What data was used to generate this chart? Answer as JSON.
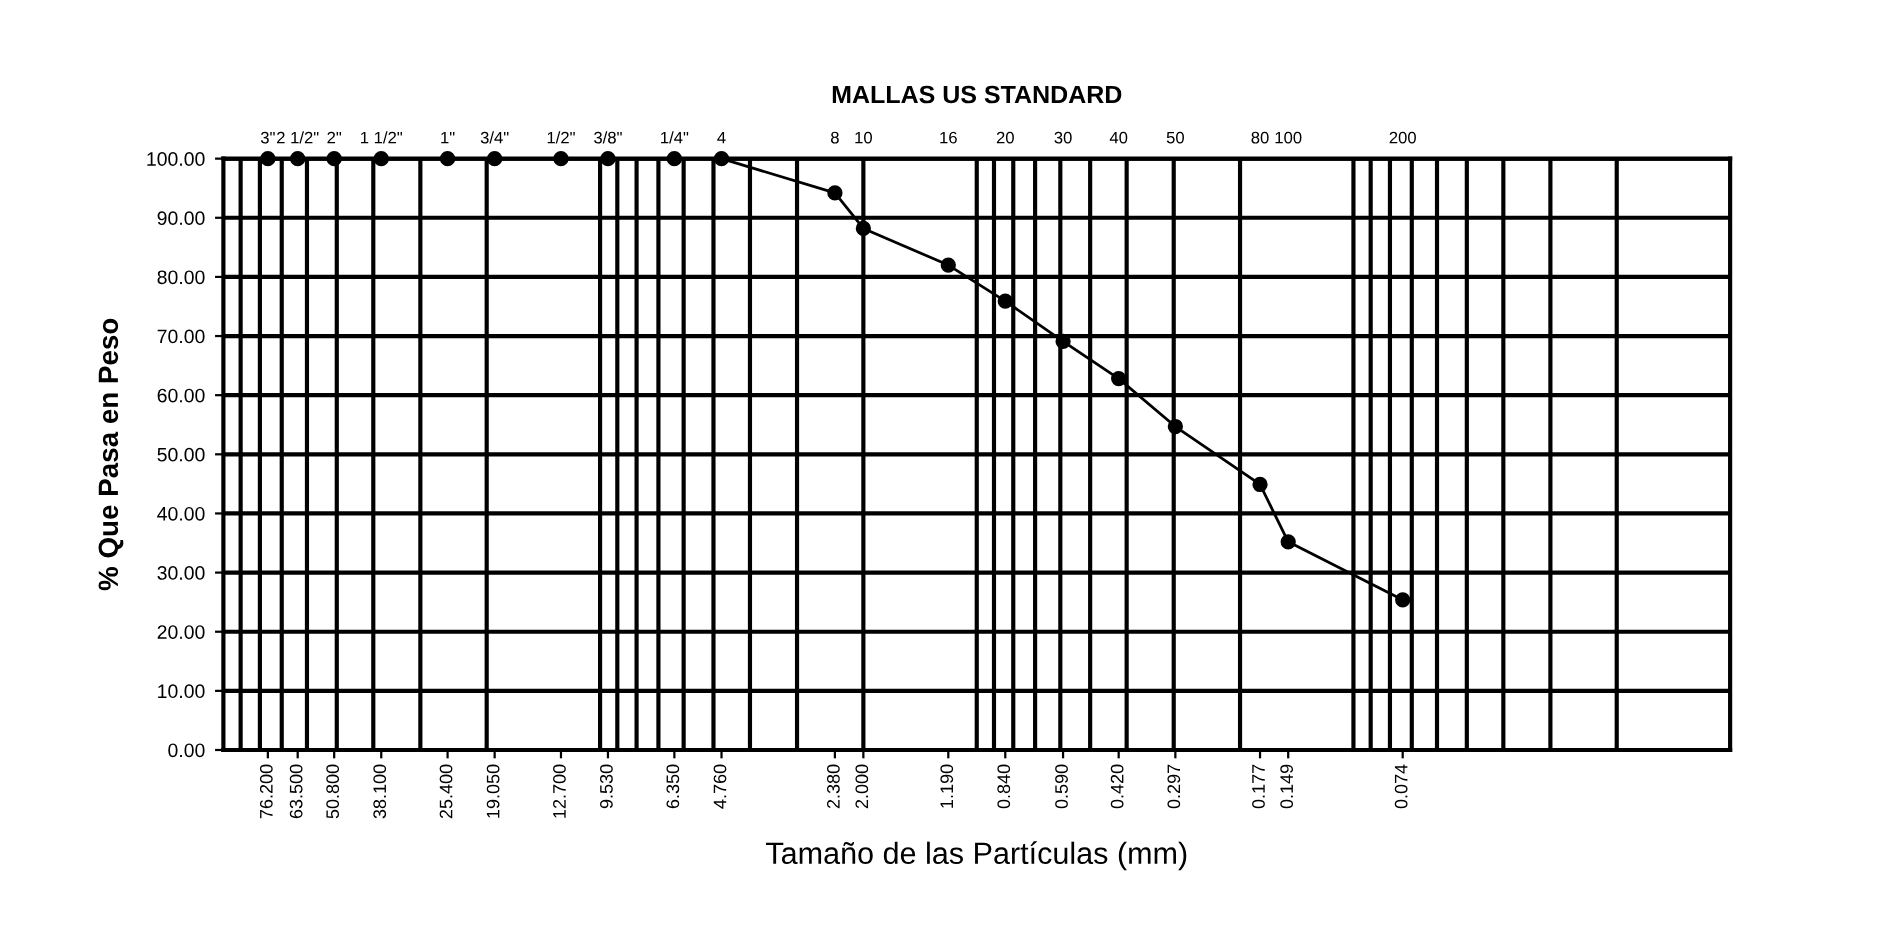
{
  "chart_data": {
    "type": "line",
    "title": "MALLAS US STANDARD",
    "xlabel": "Tamaño de las Partículas (mm)",
    "ylabel": "% Que Pasa en Peso",
    "log": "x",
    "xlim": [
      100,
      0.01
    ],
    "ylim": [
      0,
      100
    ],
    "yticks": [
      {
        "value": 0,
        "label": "0.00"
      },
      {
        "value": 10,
        "label": "10.00"
      },
      {
        "value": 20,
        "label": "20.00"
      },
      {
        "value": 30,
        "label": "30.00"
      },
      {
        "value": 40,
        "label": "40.00"
      },
      {
        "value": 50,
        "label": "50.00"
      },
      {
        "value": 60,
        "label": "60.00"
      },
      {
        "value": 70,
        "label": "70.00"
      },
      {
        "value": 80,
        "label": "80.00"
      },
      {
        "value": 90,
        "label": "90.00"
      },
      {
        "value": 100,
        "label": "100.00"
      }
    ],
    "xticks": [
      {
        "value": 76.2,
        "label": "76.200"
      },
      {
        "value": 63.5,
        "label": "63.500"
      },
      {
        "value": 50.8,
        "label": "50.800"
      },
      {
        "value": 38.1,
        "label": "38.100"
      },
      {
        "value": 25.4,
        "label": "25.400"
      },
      {
        "value": 19.05,
        "label": "19.050"
      },
      {
        "value": 12.7,
        "label": "12.700"
      },
      {
        "value": 9.53,
        "label": "9.530"
      },
      {
        "value": 6.35,
        "label": "6.350"
      },
      {
        "value": 4.76,
        "label": "4.760"
      },
      {
        "value": 2.38,
        "label": "2.380"
      },
      {
        "value": 2.0,
        "label": "2.000"
      },
      {
        "value": 1.19,
        "label": "1.190"
      },
      {
        "value": 0.84,
        "label": "0.840"
      },
      {
        "value": 0.59,
        "label": "0.590"
      },
      {
        "value": 0.42,
        "label": "0.420"
      },
      {
        "value": 0.297,
        "label": "0.297"
      },
      {
        "value": 0.177,
        "label": "0.177"
      },
      {
        "value": 0.149,
        "label": "0.149"
      },
      {
        "value": 0.074,
        "label": "0.074"
      }
    ],
    "annotations": [
      "3\"",
      "2 1/2\"",
      "2\"",
      "1 1/2\"",
      "1\"",
      "3/4\"",
      "1/2\"",
      "3/8\"",
      "1/4\"",
      "4",
      "8",
      "10",
      "16",
      "20",
      "30",
      "40",
      "50",
      "80",
      "100",
      "200"
    ],
    "grid": "y",
    "marker": "circle",
    "line_style": "solid",
    "x": [
      76.2,
      63.5,
      50.8,
      38.1,
      25.4,
      19.05,
      12.7,
      9.53,
      6.35,
      4.76,
      2.38,
      2.0,
      1.19,
      0.84,
      0.59,
      0.42,
      0.297,
      0.177,
      0.149,
      0.074
    ],
    "series": [
      {
        "color": "#000000",
        "values": [
          100,
          100,
          100,
          100,
          100,
          100,
          100,
          100,
          100,
          100,
          94.2,
          88.2,
          82.0,
          75.9,
          69.1,
          62.8,
          54.7,
          44.9,
          35.2,
          25.4
        ]
      }
    ],
    "ref_lines": [
      {
        "axis": "x",
        "value": 90,
        "color": "#000000"
      },
      {
        "axis": "x",
        "value": 80,
        "color": "#000000"
      },
      {
        "axis": "x",
        "value": 70,
        "color": "#000000"
      },
      {
        "axis": "x",
        "value": 60,
        "color": "#000000"
      },
      {
        "axis": "x",
        "value": 50,
        "color": "#000000"
      },
      {
        "axis": "x",
        "value": 40,
        "color": "#000000"
      },
      {
        "axis": "x",
        "value": 30,
        "color": "#000000"
      },
      {
        "axis": "x",
        "value": 20,
        "color": "#000000"
      },
      {
        "axis": "x",
        "value": 10,
        "color": "#000000"
      },
      {
        "axis": "x",
        "value": 9,
        "color": "#000000"
      },
      {
        "axis": "x",
        "value": 8,
        "color": "#000000"
      },
      {
        "axis": "x",
        "value": 7,
        "color": "#000000"
      },
      {
        "axis": "x",
        "value": 6,
        "color": "#000000"
      },
      {
        "axis": "x",
        "value": 5,
        "color": "#000000"
      },
      {
        "axis": "x",
        "value": 4,
        "color": "#000000"
      },
      {
        "axis": "x",
        "value": 3,
        "color": "#000000"
      },
      {
        "axis": "x",
        "value": 2,
        "color": "#000000"
      },
      {
        "axis": "x",
        "value": 1,
        "color": "#000000"
      },
      {
        "axis": "x",
        "value": 0.9,
        "color": "#000000"
      },
      {
        "axis": "x",
        "value": 0.8,
        "color": "#000000"
      },
      {
        "axis": "x",
        "value": 0.7,
        "color": "#000000"
      },
      {
        "axis": "x",
        "value": 0.6,
        "color": "#000000"
      },
      {
        "axis": "x",
        "value": 0.5,
        "color": "#000000"
      },
      {
        "axis": "x",
        "value": 0.4,
        "color": "#000000"
      },
      {
        "axis": "x",
        "value": 0.3,
        "color": "#000000"
      },
      {
        "axis": "x",
        "value": 0.2,
        "color": "#000000"
      },
      {
        "axis": "x",
        "value": 0.1,
        "color": "#000000"
      },
      {
        "axis": "x",
        "value": 0.09,
        "color": "#000000"
      },
      {
        "axis": "x",
        "value": 0.08,
        "color": "#000000"
      },
      {
        "axis": "x",
        "value": 0.07,
        "color": "#000000"
      },
      {
        "axis": "x",
        "value": 0.06,
        "color": "#000000"
      },
      {
        "axis": "x",
        "value": 0.05,
        "color": "#000000"
      },
      {
        "axis": "x",
        "value": 0.04,
        "color": "#000000"
      },
      {
        "axis": "x",
        "value": 0.03,
        "color": "#000000"
      },
      {
        "axis": "x",
        "value": 0.02,
        "color": "#000000"
      }
    ]
  }
}
